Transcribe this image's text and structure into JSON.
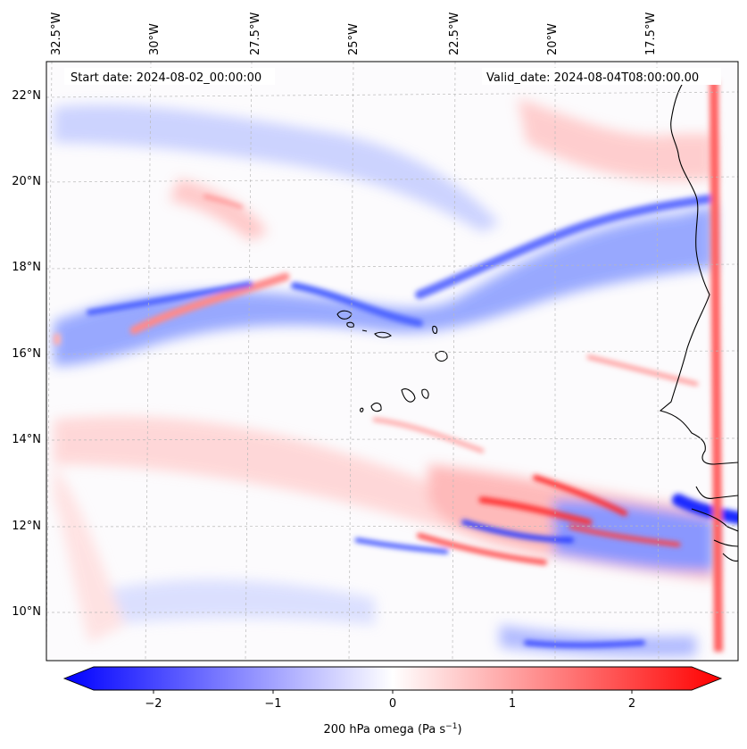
{
  "header": {
    "start_date": "Start date: 2024-08-02_00:00:00",
    "valid_date": "Valid_date: 2024-08-04T08:00:00.00"
  },
  "map": {
    "lon_labels": [
      "32.5°W",
      "30°W",
      "27.5°W",
      "25°W",
      "22.5°W",
      "20°W",
      "17.5°W"
    ],
    "lat_labels": [
      "22°N",
      "20°N",
      "18°N",
      "16°N",
      "14°N",
      "12°N",
      "10°N"
    ],
    "gridlines": "dashed"
  },
  "colorbar": {
    "ticks": [
      "−2",
      "−1",
      "0",
      "1",
      "2"
    ],
    "label": "200 hPa omega (Pa s",
    "label_exponent": "−1",
    "label_suffix": ")",
    "cmap": "bwr",
    "min_color": "#0000ff",
    "mid_color": "#ffffff",
    "max_color": "#ff0000"
  }
}
